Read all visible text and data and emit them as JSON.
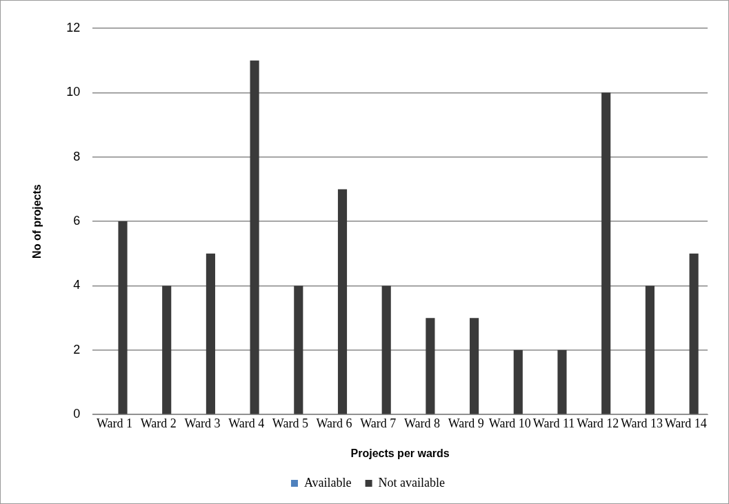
{
  "chart_data": {
    "type": "bar",
    "xlabel": "Projects per wards",
    "ylabel": "No of projects",
    "categories": [
      "Ward 1",
      "Ward 2",
      "Ward 3",
      "Ward 4",
      "Ward 5",
      "Ward 6",
      "Ward 7",
      "Ward 8",
      "Ward 9",
      "Ward 10",
      "Ward 11",
      "Ward 12",
      "Ward 13",
      "Ward 14"
    ],
    "series": [
      {
        "name": "Available",
        "color": "#4f81bd",
        "values": [
          0,
          0,
          0,
          0,
          0,
          0,
          0,
          0,
          0,
          0,
          0,
          0,
          0,
          0
        ]
      },
      {
        "name": "Not available",
        "color": "#3a3a3a",
        "values": [
          6,
          4,
          5,
          11,
          4,
          7,
          4,
          3,
          3,
          2,
          2,
          10,
          4,
          5
        ]
      }
    ],
    "ylim": [
      0,
      12
    ],
    "yticks": [
      0,
      2,
      4,
      6,
      8,
      10,
      12
    ],
    "grid": "y",
    "legend": "bottom"
  }
}
